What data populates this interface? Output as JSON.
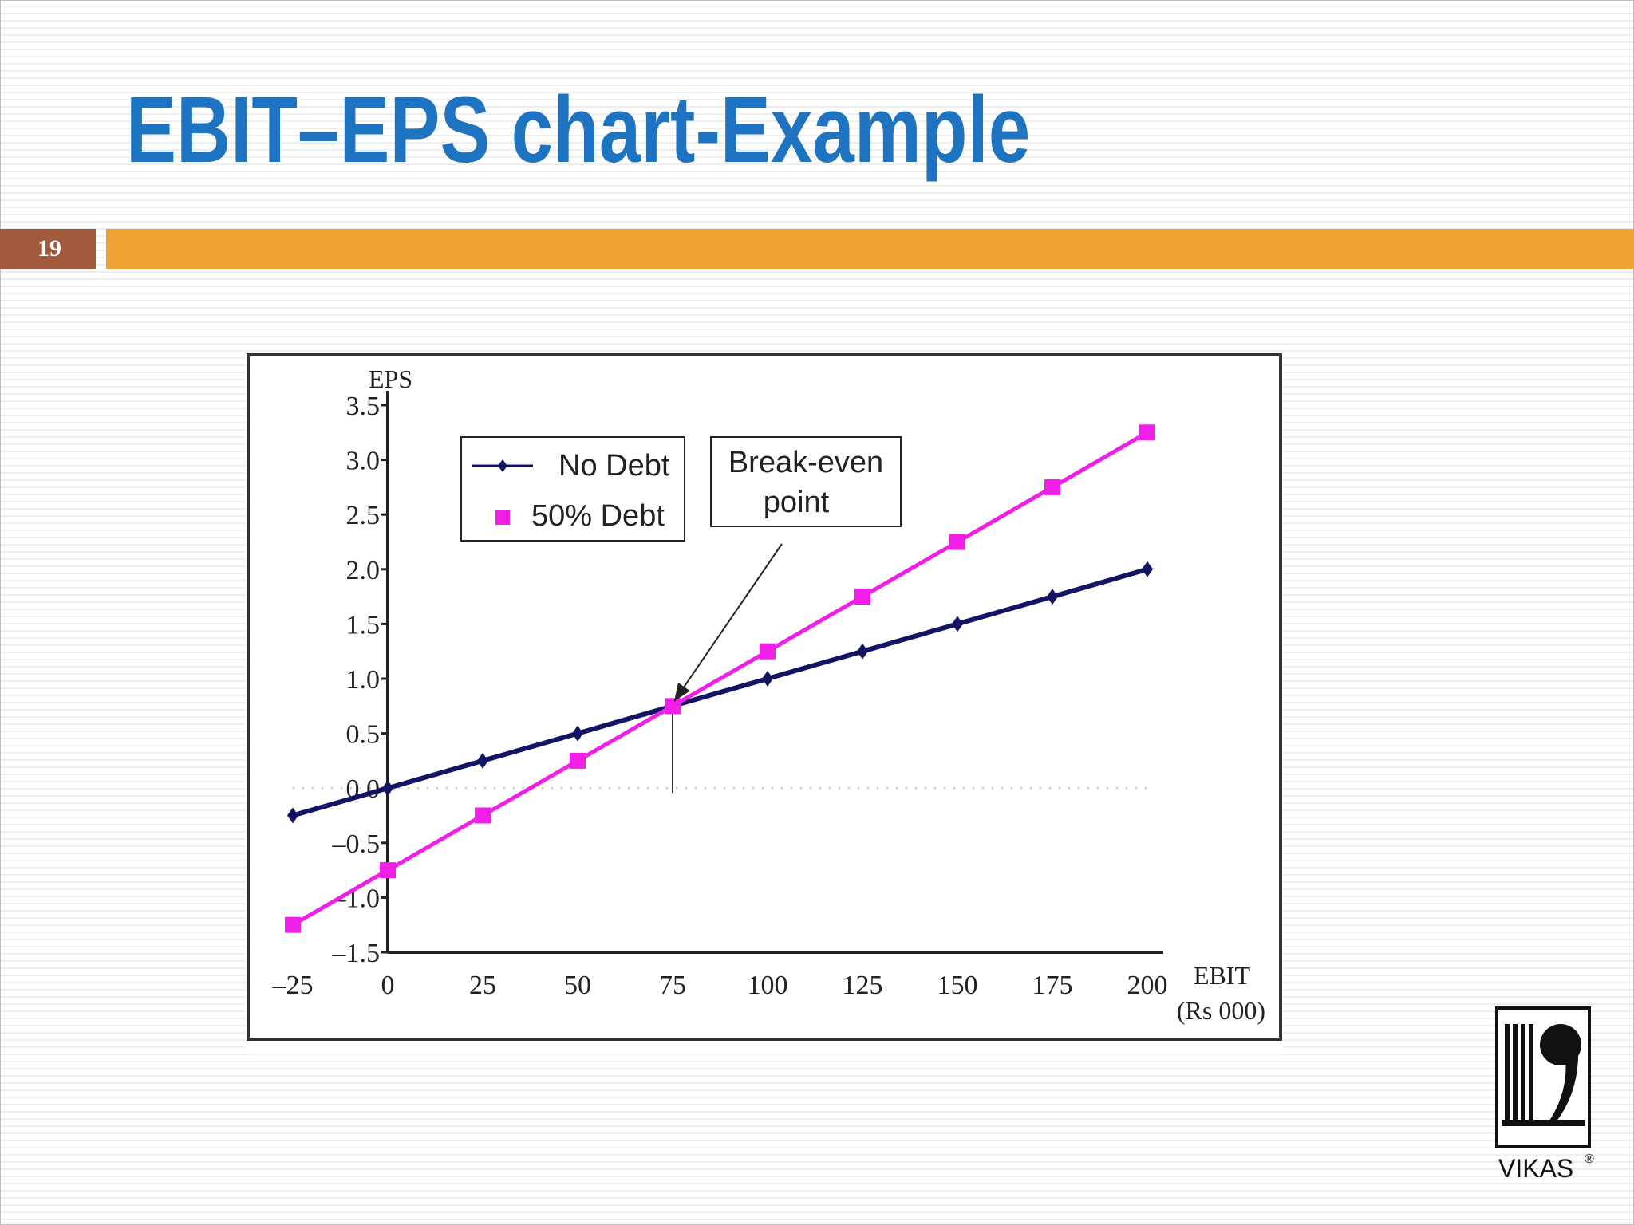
{
  "slide": {
    "title": "EBIT–EPS chart-Example",
    "number": "19"
  },
  "colors": {
    "title": "#1f74c1",
    "number_box": "#a25a3c",
    "accent_bar": "#efa233",
    "no_debt": "#141464",
    "debt_50": "#f01ee6"
  },
  "chart_data": {
    "type": "line",
    "x": [
      -25,
      0,
      25,
      50,
      75,
      100,
      125,
      150,
      175,
      200
    ],
    "x_tick_labels": [
      "–25",
      "0",
      "25",
      "50",
      "75",
      "100",
      "125",
      "150",
      "175",
      "200"
    ],
    "y_tick_values": [
      -1.5,
      -1.0,
      -0.5,
      0.0,
      0.5,
      1.0,
      1.5,
      2.0,
      2.5,
      3.0,
      3.5
    ],
    "y_tick_labels": [
      "–1.5",
      "–1.0",
      "–0.5",
      "0.0",
      "0.5",
      "1.0",
      "1.5",
      "2.0",
      "2.5",
      "3.0",
      "3.5"
    ],
    "xlim": [
      -25,
      200
    ],
    "ylim": [
      -1.5,
      3.5
    ],
    "ylabel": "EPS",
    "xlabel": "EBIT",
    "xlabel_unit": "(Rs 000)",
    "grid": false,
    "legend_position": "top-left",
    "series": [
      {
        "name": "No Debt",
        "marker": "diamond",
        "values": [
          -0.25,
          0.0,
          0.25,
          0.5,
          0.75,
          1.0,
          1.25,
          1.5,
          1.75,
          2.0
        ]
      },
      {
        "name": "50% Debt",
        "marker": "square",
        "values": [
          -1.25,
          -0.75,
          -0.25,
          0.25,
          0.75,
          1.25,
          1.75,
          2.25,
          2.75,
          3.25
        ]
      }
    ],
    "annotation": {
      "line1": "Break-even",
      "line2": "point",
      "x": 75,
      "y": 0.75
    }
  },
  "logo": {
    "text": "VIKAS",
    "mark": "®"
  }
}
